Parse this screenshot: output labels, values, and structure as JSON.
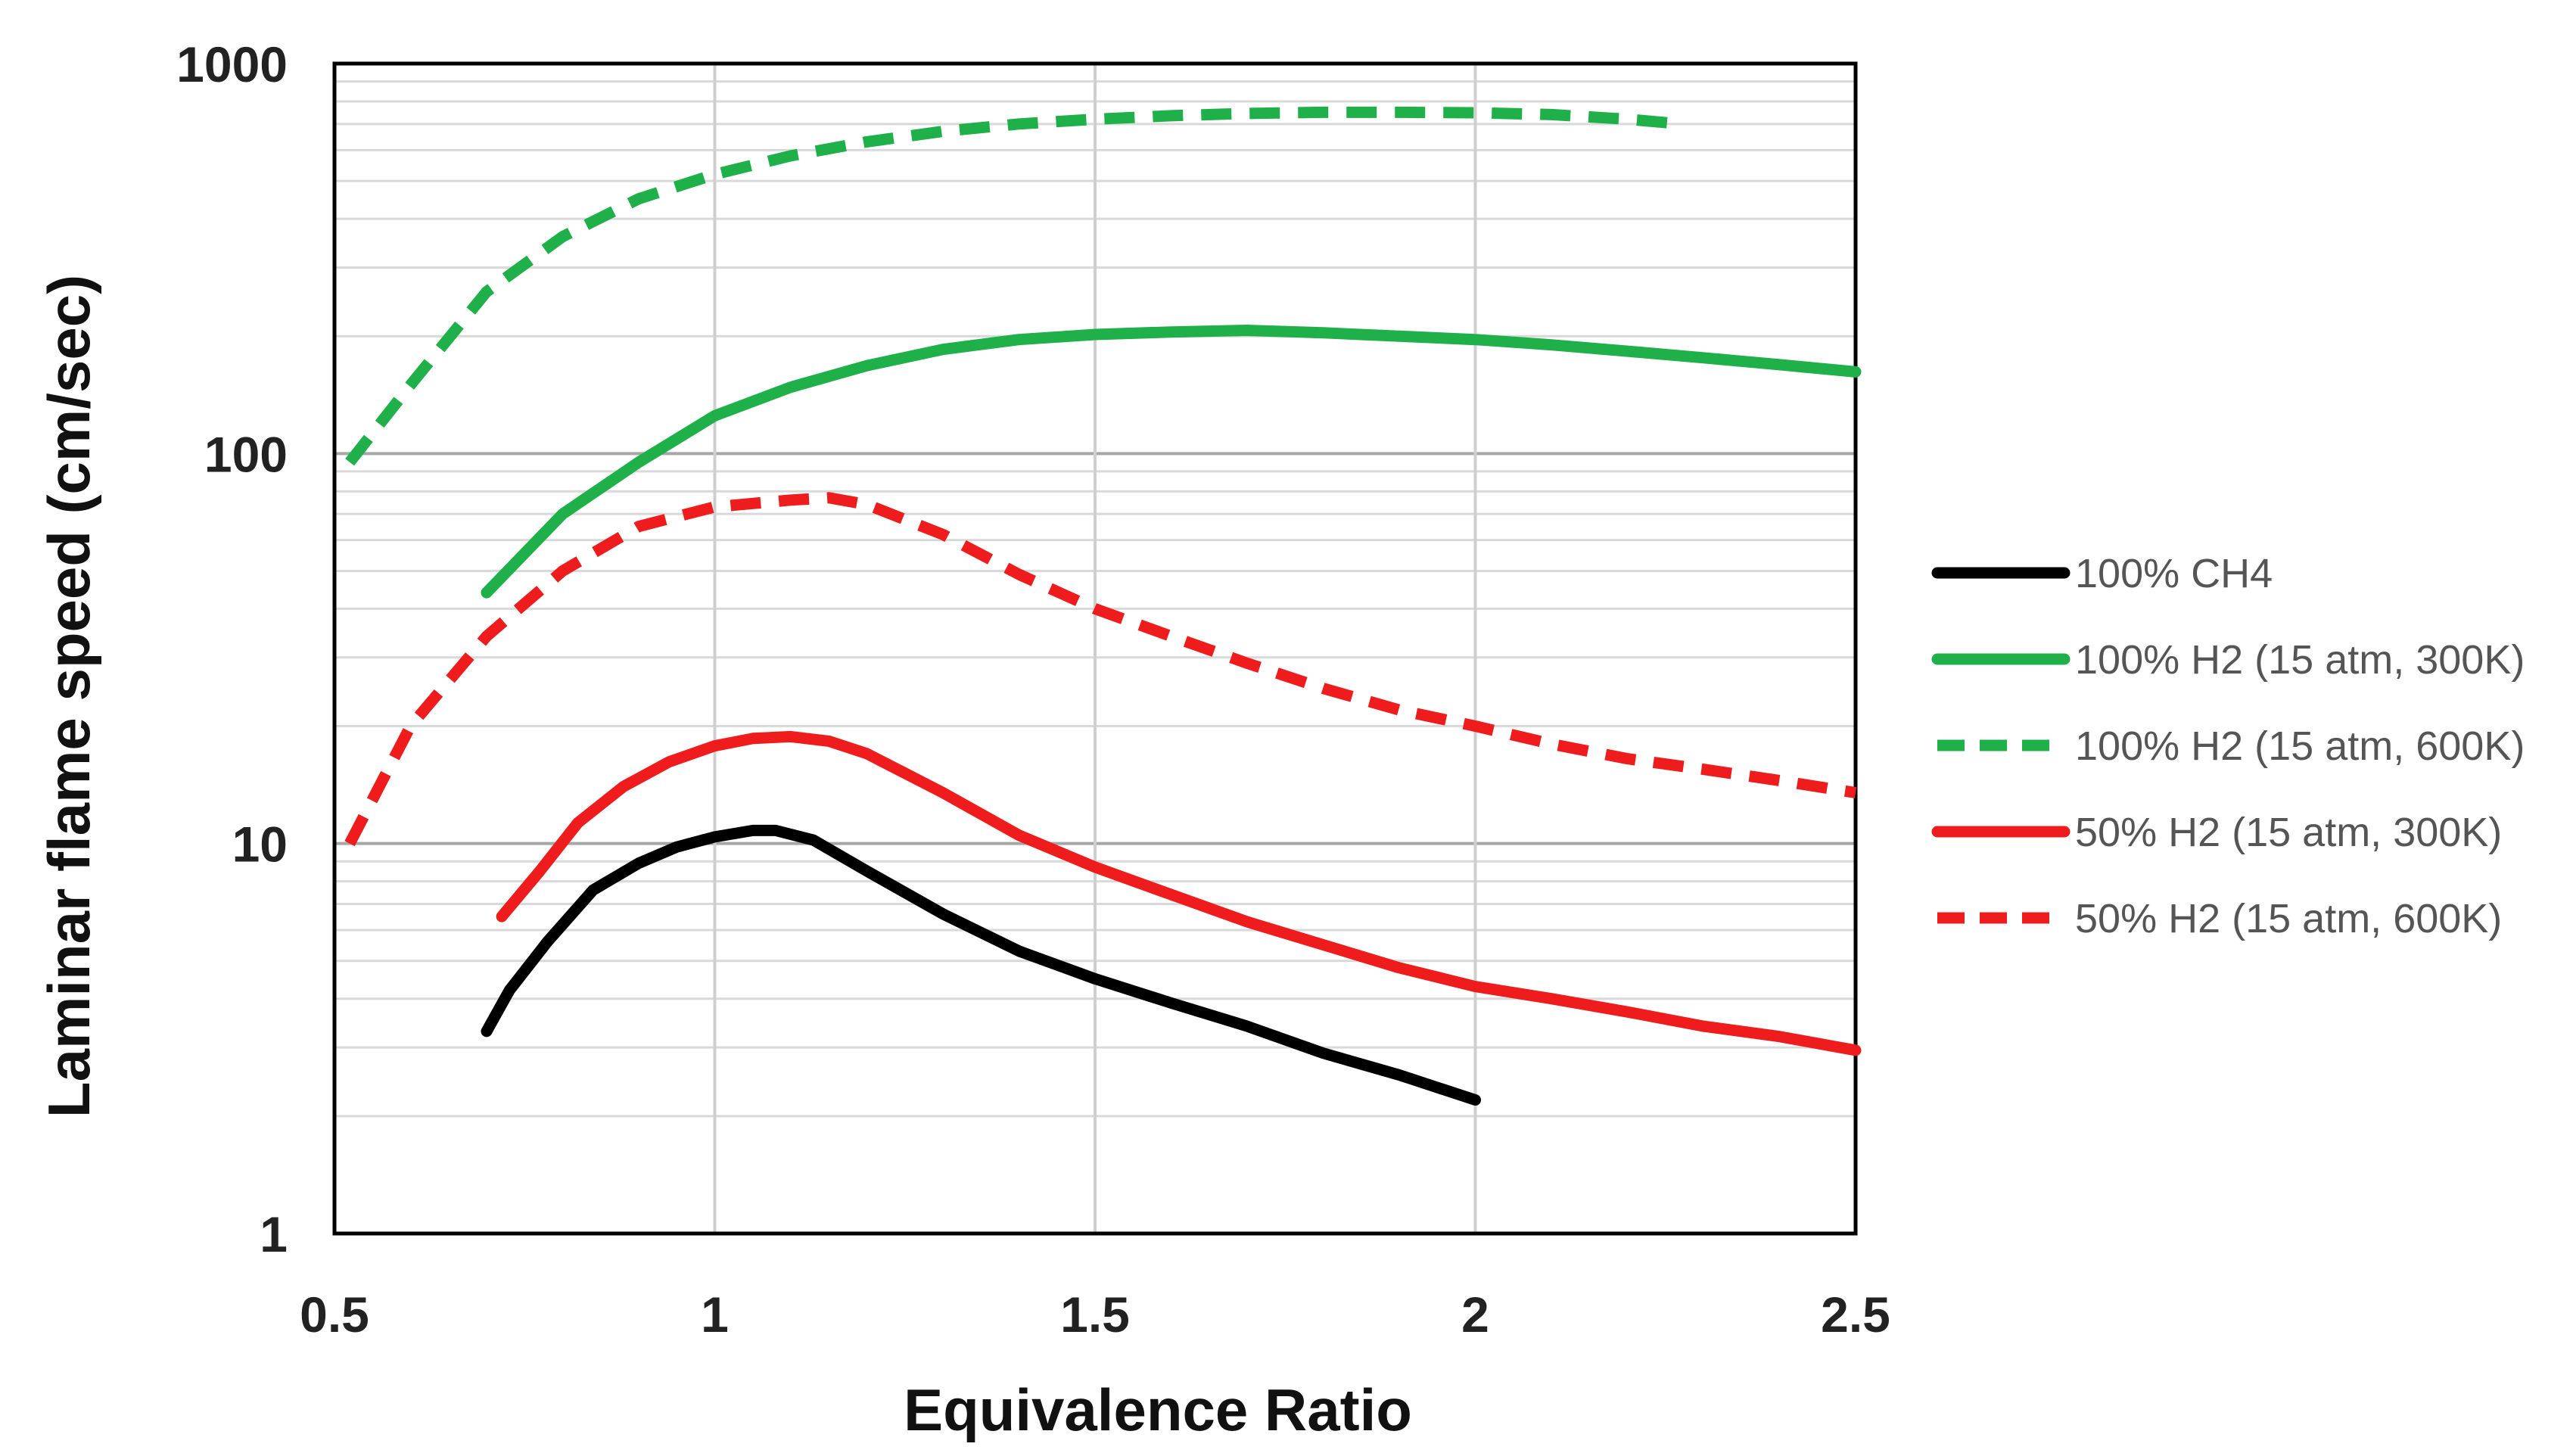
{
  "chart_data": {
    "type": "line",
    "title": "",
    "xlabel": "Equivalence Ratio",
    "ylabel": "Laminar flame speed (cm/sec)",
    "xlim": [
      0.5,
      2.5
    ],
    "ylim": [
      1,
      1000
    ],
    "yscale": "log",
    "grid": true,
    "legend_position": "right",
    "x_ticks": [
      0.5,
      1,
      1.5,
      2,
      2.5
    ],
    "x_tick_labels": [
      "0.5",
      "1",
      "1.5",
      "2",
      "2.5"
    ],
    "y_ticks": [
      1,
      10,
      100,
      1000
    ],
    "y_tick_labels": [
      "1",
      "10",
      "100",
      "1000"
    ],
    "series": [
      {
        "name": "100% CH4",
        "color": "#000000",
        "dash": "solid",
        "x": [
          0.7,
          0.73,
          0.78,
          0.84,
          0.9,
          0.95,
          1.0,
          1.05,
          1.08,
          1.13,
          1.2,
          1.3,
          1.4,
          1.5,
          1.6,
          1.7,
          1.8,
          1.9,
          2.0
        ],
        "y": [
          3.3,
          4.2,
          5.6,
          7.6,
          8.9,
          9.8,
          10.4,
          10.8,
          10.8,
          10.2,
          8.5,
          6.6,
          5.3,
          4.5,
          3.9,
          3.4,
          2.9,
          2.55,
          2.2
        ]
      },
      {
        "name": "100% H2 (15 atm, 300K)",
        "color": "#1fb04a",
        "dash": "solid",
        "x": [
          0.7,
          0.8,
          0.9,
          1.0,
          1.1,
          1.2,
          1.3,
          1.4,
          1.5,
          1.6,
          1.7,
          1.8,
          1.9,
          2.0,
          2.1,
          2.2,
          2.3,
          2.4,
          2.5
        ],
        "y": [
          44,
          70,
          95,
          125,
          148,
          168,
          185,
          196,
          202,
          205,
          207,
          204,
          200,
          196,
          190,
          183,
          176,
          169,
          162
        ]
      },
      {
        "name": "100% H2 (15 atm, 600K)",
        "color": "#1fb04a",
        "dash": "dashed",
        "x": [
          0.52,
          0.6,
          0.7,
          0.8,
          0.9,
          1.0,
          1.1,
          1.2,
          1.3,
          1.4,
          1.5,
          1.6,
          1.7,
          1.8,
          1.9,
          2.0,
          2.1,
          2.2,
          2.27
        ],
        "y": [
          95,
          150,
          260,
          360,
          450,
          520,
          580,
          630,
          670,
          700,
          720,
          735,
          745,
          750,
          750,
          748,
          740,
          720,
          700
        ]
      },
      {
        "name": "50% H2 (15 atm, 300K)",
        "color": "#ee1c1c",
        "dash": "solid",
        "x": [
          0.72,
          0.77,
          0.82,
          0.88,
          0.94,
          1.0,
          1.05,
          1.1,
          1.15,
          1.2,
          1.3,
          1.4,
          1.5,
          1.6,
          1.7,
          1.8,
          1.9,
          2.0,
          2.1,
          2.2,
          2.3,
          2.4,
          2.5
        ],
        "y": [
          6.5,
          8.5,
          11.3,
          14.0,
          16.2,
          17.8,
          18.6,
          18.8,
          18.3,
          17.0,
          13.5,
          10.5,
          8.7,
          7.4,
          6.3,
          5.5,
          4.8,
          4.3,
          4.0,
          3.7,
          3.4,
          3.2,
          2.95
        ]
      },
      {
        "name": "50% H2 (15 atm, 600K)",
        "color": "#ee1c1c",
        "dash": "dashed",
        "x": [
          0.52,
          0.6,
          0.7,
          0.8,
          0.9,
          1.0,
          1.1,
          1.15,
          1.2,
          1.3,
          1.4,
          1.5,
          1.6,
          1.7,
          1.8,
          1.9,
          2.0,
          2.1,
          2.2,
          2.3,
          2.4,
          2.5
        ],
        "y": [
          10,
          20,
          34,
          50,
          65,
          73,
          76,
          77,
          74,
          62,
          49,
          40,
          34,
          29,
          25,
          22,
          20,
          18,
          16.5,
          15.5,
          14.5,
          13.5
        ]
      }
    ]
  }
}
